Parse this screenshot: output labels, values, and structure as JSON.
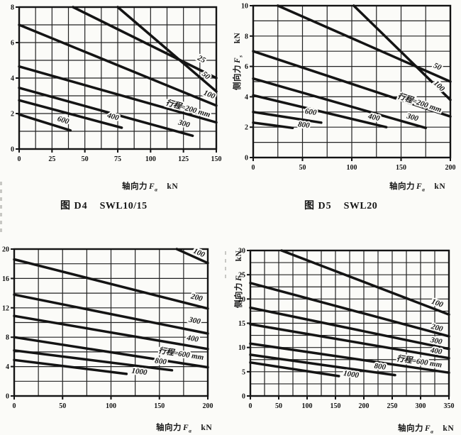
{
  "page": {
    "background": "#fbfbf8",
    "ink": "#161616",
    "curve_color": "#141414",
    "grid_color": "#222222"
  },
  "chart_data": [
    {
      "type": "line",
      "figure": "图 D4",
      "model": "SWL10/15",
      "xlabel": "轴向力",
      "xlabel_sym": "F",
      "xlabel_sub": "a",
      "xlabel_unit": "kN",
      "x": {
        "min": 0,
        "max": 150,
        "grid": 12.5,
        "ticks": [
          0,
          25,
          50,
          75,
          100,
          125,
          150
        ]
      },
      "y": {
        "min": 0,
        "max": 8,
        "grid": 1,
        "ticks": [
          0,
          2,
          4,
          6,
          8
        ]
      },
      "series": [
        {
          "label": "25",
          "points": [
            [
              41,
              8.0
            ],
            [
              150,
              4.0
            ]
          ],
          "label_at": [
            138,
            4.95
          ]
        },
        {
          "label": "50",
          "points": [
            [
              75,
              8.0
            ],
            [
              150,
              3.25
            ]
          ],
          "label_at": [
            141,
            4.05
          ]
        },
        {
          "label": "100",
          "points": [
            [
              0,
              7.0
            ],
            [
              150,
              2.45
            ]
          ],
          "label_at": [
            144,
            2.95
          ]
        },
        {
          "label": "行程=200 mm",
          "points": [
            [
              0,
              4.65
            ],
            [
              150,
              1.5
            ]
          ],
          "label_at": [
            128,
            2.15
          ]
        },
        {
          "label": "300",
          "points": [
            [
              0,
              3.45
            ],
            [
              132,
              0.75
            ]
          ],
          "label_at": [
            125,
            1.3
          ]
        },
        {
          "label": "400",
          "points": [
            [
              0,
              2.75
            ],
            [
              78,
              1.2
            ]
          ],
          "label_at": [
            71,
            1.7
          ]
        },
        {
          "label": "600",
          "points": [
            [
              0,
              1.95
            ],
            [
              39,
              1.05
            ]
          ],
          "label_at": [
            33,
            1.5
          ]
        }
      ]
    },
    {
      "type": "line",
      "figure": "图 D5",
      "model": "SWL20",
      "xlabel": "轴向力",
      "xlabel_sym": "F",
      "xlabel_sub": "a",
      "xlabel_unit": "kN",
      "ylabel": "侧向力",
      "ylabel_sym": "F",
      "ylabel_sub": "s",
      "ylabel_unit": "kN",
      "x": {
        "min": 0,
        "max": 200,
        "grid": 25,
        "ticks": [
          0,
          50,
          100,
          150,
          200
        ]
      },
      "y": {
        "min": 0,
        "max": 10,
        "grid": 1,
        "ticks": [
          0,
          2,
          4,
          6,
          8,
          10
        ]
      },
      "series": [
        {
          "label": "50",
          "points": [
            [
              25,
              10.0
            ],
            [
              200,
              5.0
            ]
          ],
          "label_at": [
            186,
            5.85
          ]
        },
        {
          "label": "100",
          "points": [
            [
              102,
              10.0
            ],
            [
              200,
              3.8
            ]
          ],
          "label_at": [
            187,
            4.6
          ]
        },
        {
          "label": "行程=200 mm",
          "points": [
            [
              0,
              7.0
            ],
            [
              200,
              2.7
            ]
          ],
          "label_at": [
            168,
            3.45
          ]
        },
        {
          "label": "300",
          "points": [
            [
              0,
              5.2
            ],
            [
              175,
              1.95
            ]
          ],
          "label_at": [
            161,
            2.5
          ]
        },
        {
          "label": "400",
          "points": [
            [
              0,
              4.1
            ],
            [
              135,
              2.0
            ]
          ],
          "label_at": [
            122,
            2.5
          ]
        },
        {
          "label": "600",
          "points": [
            [
              0,
              3.0
            ],
            [
              69,
              2.3
            ]
          ],
          "label_at": [
            58,
            2.85
          ]
        },
        {
          "label": "800",
          "points": [
            [
              0,
              2.3
            ],
            [
              40,
              1.95
            ]
          ],
          "label_at": [
            51,
            2.0
          ]
        }
      ]
    },
    {
      "type": "line",
      "xlabel": "轴向力",
      "xlabel_sym": "F",
      "xlabel_sub": "a",
      "xlabel_unit": "kN",
      "x": {
        "min": 0,
        "max": 200,
        "grid": 25,
        "ticks": [
          0,
          50,
          100,
          150,
          200
        ]
      },
      "y": {
        "min": 0,
        "max": 20,
        "grid": 2,
        "ticks": [
          0,
          4,
          8,
          12,
          16,
          20
        ]
      },
      "series": [
        {
          "label": "100",
          "points": [
            [
              168,
              20.0
            ],
            [
              200,
              18.1
            ]
          ],
          "label_at": [
            190,
            19.2
          ]
        },
        {
          "label": "200",
          "points": [
            [
              0,
              18.6
            ],
            [
              200,
              11.9
            ]
          ],
          "label_at": [
            188,
            13.1
          ]
        },
        {
          "label": "300",
          "points": [
            [
              0,
              13.8
            ],
            [
              200,
              8.5
            ]
          ],
          "label_at": [
            186,
            9.95
          ]
        },
        {
          "label": "400",
          "points": [
            [
              0,
              10.9
            ],
            [
              200,
              6.4
            ]
          ],
          "label_at": [
            184,
            7.5
          ]
        },
        {
          "label": "行程=600 mm",
          "points": [
            [
              0,
              8.0
            ],
            [
              200,
              3.9
            ]
          ],
          "label_at": [
            172,
            5.4
          ]
        },
        {
          "label": "800",
          "points": [
            [
              0,
              6.2
            ],
            [
              163,
              3.5
            ]
          ],
          "label_at": [
            151,
            4.4
          ]
        },
        {
          "label": "1000",
          "points": [
            [
              0,
              4.9
            ],
            [
              116,
              3.0
            ]
          ],
          "label_at": [
            129,
            3.0
          ]
        }
      ]
    },
    {
      "type": "line",
      "xlabel": "轴向力",
      "xlabel_sym": "F",
      "xlabel_sub": "a",
      "xlabel_unit": "kN",
      "ylabel": "侧向力",
      "ylabel_sym": "F",
      "ylabel_sub": "s",
      "ylabel_unit": "kN",
      "x": {
        "min": 0,
        "max": 350,
        "grid": 25,
        "ticks": [
          0,
          50,
          100,
          150,
          200,
          250,
          300,
          350
        ]
      },
      "y": {
        "min": 0,
        "max": 30,
        "grid": 2.5,
        "ticks": [
          0,
          5,
          10,
          15,
          20,
          25,
          30
        ]
      },
      "series": [
        {
          "label": "100",
          "points": [
            [
              55,
              30.0
            ],
            [
              350,
              16.8
            ]
          ],
          "label_at": [
            328,
            18.7
          ]
        },
        {
          "label": "200",
          "points": [
            [
              0,
              23.3
            ],
            [
              350,
              12.3
            ]
          ],
          "label_at": [
            328,
            13.6
          ]
        },
        {
          "label": "300",
          "points": [
            [
              0,
              18.2
            ],
            [
              350,
              9.7
            ]
          ],
          "label_at": [
            327,
            10.9
          ]
        },
        {
          "label": "400",
          "points": [
            [
              0,
              14.8
            ],
            [
              350,
              7.8
            ]
          ],
          "label_at": [
            327,
            8.8
          ]
        },
        {
          "label": "行程=600 mm",
          "points": [
            [
              0,
              10.8
            ],
            [
              350,
              4.8
            ]
          ],
          "label_at": [
            297,
            6.6
          ]
        },
        {
          "label": "800",
          "points": [
            [
              0,
              8.5
            ],
            [
              255,
              4.3
            ]
          ],
          "label_at": [
            228,
            5.6
          ]
        },
        {
          "label": "1000",
          "points": [
            [
              0,
              6.9
            ],
            [
              156,
              4.1
            ]
          ],
          "label_at": [
            177,
            4.0
          ]
        }
      ]
    }
  ]
}
